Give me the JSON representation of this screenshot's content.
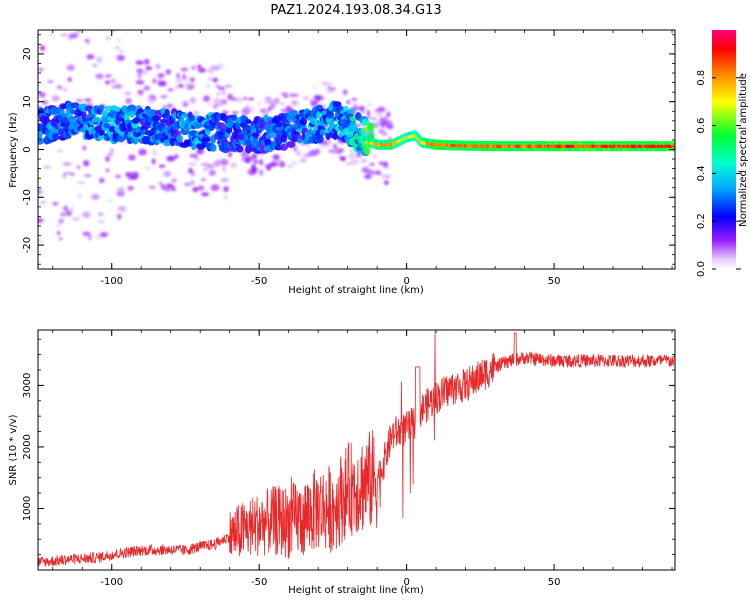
{
  "figure_title": "PAZ1.2024.193.08.34.G13",
  "chart_data": [
    {
      "type": "heatmap",
      "title": "PAZ1.2024.193.08.34.G13",
      "xlabel": "Height of straight line (km)",
      "ylabel": "Frequency (Hz)",
      "xlim": [
        -125,
        91
      ],
      "ylim": [
        -25,
        25
      ],
      "xticks": [
        -100,
        -50,
        0,
        50
      ],
      "yticks": [
        -20,
        -10,
        0,
        10,
        20
      ],
      "colorbar": {
        "label": "Normalized spectral amplitude",
        "range": [
          0,
          1
        ],
        "ticks": [
          "0.0",
          "0.2",
          "0.4",
          "0.6",
          "0.8"
        ],
        "colormap": [
          "#ffffff",
          "#e0c8ff",
          "#8a00ff",
          "#0000ff",
          "#00e5ff",
          "#00ff40",
          "#ffff00",
          "#ff8000",
          "#ff0000",
          "#ff0080"
        ]
      },
      "ridge": {
        "x": [
          -125,
          -115,
          -100,
          -90,
          -80,
          -70,
          -60,
          -50,
          -40,
          -30,
          -25,
          -20,
          -15,
          -12,
          -10,
          -5,
          0,
          3,
          5,
          10,
          20,
          30,
          40,
          50,
          60,
          70,
          80,
          91
        ],
        "y": [
          5,
          6,
          5.5,
          5,
          4.5,
          4,
          3.5,
          3,
          4,
          5.5,
          6.5,
          5,
          3,
          1.5,
          1,
          1,
          2.5,
          3,
          1.5,
          1,
          0.8,
          0.7,
          0.7,
          0.7,
          0.7,
          0.7,
          0.7,
          0.7
        ],
        "amplitude": [
          0.3,
          0.3,
          0.35,
          0.35,
          0.3,
          0.35,
          0.3,
          0.3,
          0.3,
          0.35,
          0.35,
          0.4,
          0.5,
          0.7,
          0.8,
          0.8,
          0.7,
          0.7,
          0.75,
          0.85,
          0.85,
          0.85,
          0.85,
          0.9,
          0.9,
          0.9,
          0.9,
          0.9
        ]
      }
    },
    {
      "type": "line",
      "xlabel": "Height of straight line (km)",
      "ylabel": "SNR (10 * v/v)",
      "xlim": [
        -125,
        91
      ],
      "ylim": [
        0,
        3900
      ],
      "xticks": [
        -100,
        -50,
        0,
        50
      ],
      "yticks": [
        1000,
        2000,
        3000
      ],
      "color": "#e8282a",
      "series": [
        {
          "x": [
            -125,
            -115,
            -105,
            -100,
            -90,
            -80,
            -75,
            -70,
            -65,
            -60,
            -55,
            -50,
            -45,
            -40,
            -35,
            -30,
            -25,
            -20,
            -15,
            -10,
            -8,
            -5,
            0,
            3,
            5,
            10,
            15,
            20,
            25,
            30,
            35,
            40,
            50,
            60,
            70,
            80,
            91
          ],
          "values": [
            120,
            170,
            200,
            250,
            320,
            330,
            320,
            380,
            420,
            550,
            650,
            750,
            800,
            780,
            850,
            1000,
            1000,
            1300,
            1400,
            1500,
            1700,
            2200,
            2300,
            2400,
            2600,
            2800,
            2950,
            3000,
            3150,
            3300,
            3400,
            3450,
            3400,
            3400,
            3400,
            3400,
            3400
          ]
        }
      ]
    }
  ]
}
